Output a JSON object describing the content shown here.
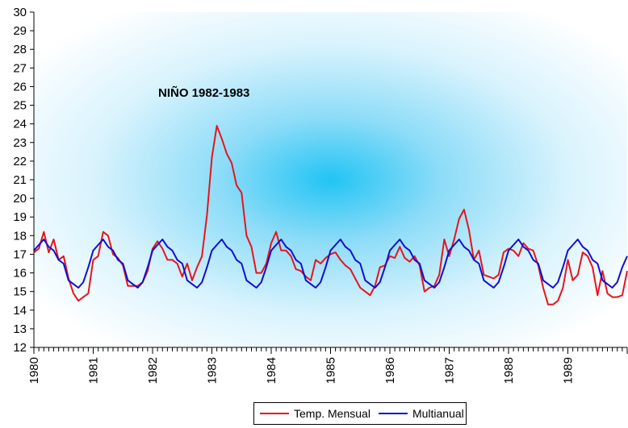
{
  "chart_data": {
    "type": "line",
    "title": "",
    "xlabel": "",
    "ylabel": "",
    "ylim": [
      12,
      30
    ],
    "xlim": [
      1980,
      1990
    ],
    "y_ticks": [
      "12",
      "13",
      "14",
      "15",
      "16",
      "17",
      "18",
      "19",
      "20",
      "21",
      "22",
      "23",
      "24",
      "25",
      "26",
      "27",
      "28",
      "29",
      "30"
    ],
    "x_ticks": [
      "1980",
      "1981",
      "1982",
      "1983",
      "1984",
      "1985",
      "1986",
      "1987",
      "1988",
      "1989"
    ],
    "annotation": "NIÑO 1982-1983",
    "legend_position": "bottom-center",
    "grid": false,
    "background": "radial light-blue gradient",
    "series": [
      {
        "name": "Temp. Mensual",
        "color": "#e8141c",
        "values": [
          17.1,
          17.3,
          18.2,
          17.1,
          17.8,
          16.7,
          16.9,
          15.7,
          14.9,
          14.5,
          14.7,
          14.9,
          16.7,
          16.9,
          18.2,
          18.0,
          17.0,
          16.8,
          16.4,
          15.3,
          15.3,
          15.3,
          15.5,
          16.1,
          17.3,
          17.7,
          17.3,
          16.7,
          16.7,
          16.5,
          15.8,
          16.5,
          15.6,
          16.3,
          16.9,
          19.1,
          22.2,
          23.9,
          23.2,
          22.4,
          21.9,
          20.7,
          20.3,
          18.0,
          17.4,
          16.0,
          16.0,
          16.5,
          17.6,
          18.2,
          17.2,
          17.2,
          16.9,
          16.2,
          16.1,
          15.8,
          15.6,
          16.7,
          16.5,
          16.8,
          17.0,
          17.1,
          16.7,
          16.4,
          16.2,
          15.7,
          15.2,
          15.0,
          14.8,
          15.3,
          16.3,
          16.4,
          16.9,
          16.8,
          17.4,
          16.8,
          16.6,
          16.9,
          16.4,
          15.0,
          15.2,
          15.3,
          15.9,
          17.8,
          16.9,
          17.8,
          18.9,
          19.4,
          18.3,
          16.7,
          17.2,
          15.9,
          15.8,
          15.7,
          15.9,
          17.1,
          17.3,
          17.2,
          16.9,
          17.6,
          17.3,
          17.2,
          16.4,
          15.2,
          14.3,
          14.3,
          14.5,
          15.2,
          16.7,
          15.6,
          15.9,
          17.1,
          16.9,
          16.3,
          14.8,
          16.1,
          14.9,
          14.7,
          14.7,
          14.8,
          16.1
        ]
      },
      {
        "name": "Multianual",
        "color": "#1010d0",
        "values": [
          17.2,
          17.5,
          17.8,
          17.4,
          17.2,
          16.7,
          16.5,
          15.6,
          15.4,
          15.2,
          15.5,
          16.3,
          17.2,
          17.5,
          17.8,
          17.4,
          17.2,
          16.7,
          16.5,
          15.6,
          15.4,
          15.2,
          15.5,
          16.3,
          17.2,
          17.5,
          17.8,
          17.4,
          17.2,
          16.7,
          16.5,
          15.6,
          15.4,
          15.2,
          15.5,
          16.3,
          17.2,
          17.5,
          17.8,
          17.4,
          17.2,
          16.7,
          16.5,
          15.6,
          15.4,
          15.2,
          15.5,
          16.3,
          17.2,
          17.5,
          17.8,
          17.4,
          17.2,
          16.7,
          16.5,
          15.6,
          15.4,
          15.2,
          15.5,
          16.3,
          17.2,
          17.5,
          17.8,
          17.4,
          17.2,
          16.7,
          16.5,
          15.6,
          15.4,
          15.2,
          15.5,
          16.3,
          17.2,
          17.5,
          17.8,
          17.4,
          17.2,
          16.7,
          16.5,
          15.6,
          15.4,
          15.2,
          15.5,
          16.3,
          17.2,
          17.5,
          17.8,
          17.4,
          17.2,
          16.7,
          16.5,
          15.6,
          15.4,
          15.2,
          15.5,
          16.3,
          17.2,
          17.5,
          17.8,
          17.4,
          17.2,
          16.7,
          16.5,
          15.6,
          15.4,
          15.2,
          15.5,
          16.3,
          17.2,
          17.5,
          17.8,
          17.4,
          17.2,
          16.7,
          16.5,
          15.6,
          15.4,
          15.2,
          15.5,
          16.3,
          16.9
        ]
      }
    ]
  }
}
